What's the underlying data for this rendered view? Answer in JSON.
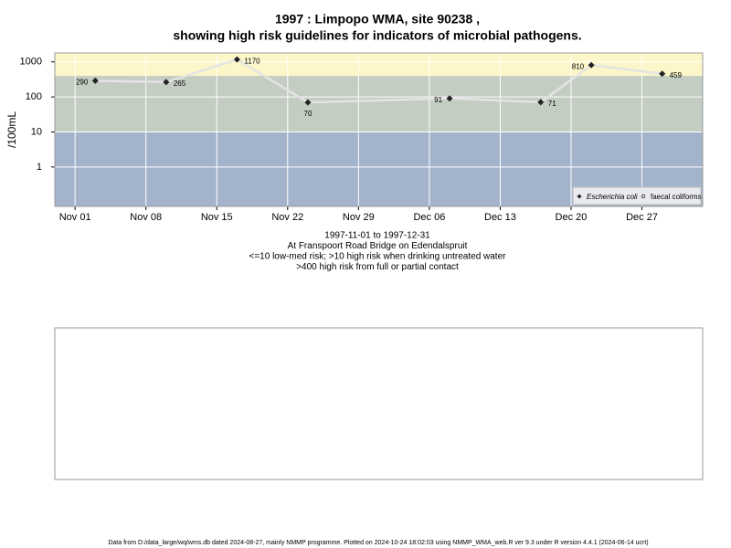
{
  "chart_data": {
    "type": "line",
    "title": "1997 : Limpopo WMA, site 90238 ,",
    "title2": "showing high risk guidelines for indicators of microbial pathogens.",
    "subtitle_lines": [
      "1997-11-01 to 1997-12-31",
      "At Franspoort Road Bridge on Edendalspruit",
      "<=10 low-med risk; >10 high risk when drinking untreated water",
      ">400 high risk from full or partial contact"
    ],
    "y_label": "/100mL",
    "log_y": true,
    "grid": true,
    "x": [
      "1997-11-03",
      "1997-11-10",
      "1997-11-17",
      "1997-11-24",
      "1997-12-08",
      "1997-12-17",
      "1997-12-22",
      "1997-12-29"
    ],
    "series": [
      {
        "name": "Escherichia coli",
        "color": "#222222",
        "line_color": "#e4e4e4",
        "values": [
          290,
          265,
          1170,
          70,
          91,
          71,
          810,
          459
        ]
      },
      {
        "name": "faecal coliforms",
        "color": "#222222",
        "values": [
          null,
          null,
          null,
          null,
          null,
          null,
          null,
          null
        ]
      }
    ],
    "bands": [
      {
        "upper": 10,
        "color": "#a3b3cc"
      },
      {
        "lower": 10,
        "upper": 400,
        "color": "#c3cdc1"
      },
      {
        "lower": 400,
        "color": "#fdf6c8"
      }
    ],
    "xlim": [
      "1997-10-30",
      "1998-01-02"
    ],
    "xticks": [
      {
        "value": "1997-11-01",
        "label": "Nov 01"
      },
      {
        "value": "1997-11-08",
        "label": "Nov 08"
      },
      {
        "value": "1997-11-15",
        "label": "Nov 15"
      },
      {
        "value": "1997-11-22",
        "label": "Nov 22"
      },
      {
        "value": "1997-11-29",
        "label": "Nov 29"
      },
      {
        "value": "1997-12-06",
        "label": "Dec 06"
      },
      {
        "value": "1997-12-13",
        "label": "Dec 13"
      },
      {
        "value": "1997-12-20",
        "label": "Dec 20"
      },
      {
        "value": "1997-12-27",
        "label": "Dec 27"
      }
    ],
    "ylim": [
      0.075,
      1800
    ],
    "yticks": [
      1,
      10,
      100,
      1000
    ],
    "footer": "Data from D:/data_large/wq/wms.db dated 2024-08-27, mainly NMMP programme. Plotted on 2024-10-24 18:02:03 using NMMP_WMA_web.R ver 9.3 under R version 4.4.1 (2024-06-14 ucrt)"
  }
}
